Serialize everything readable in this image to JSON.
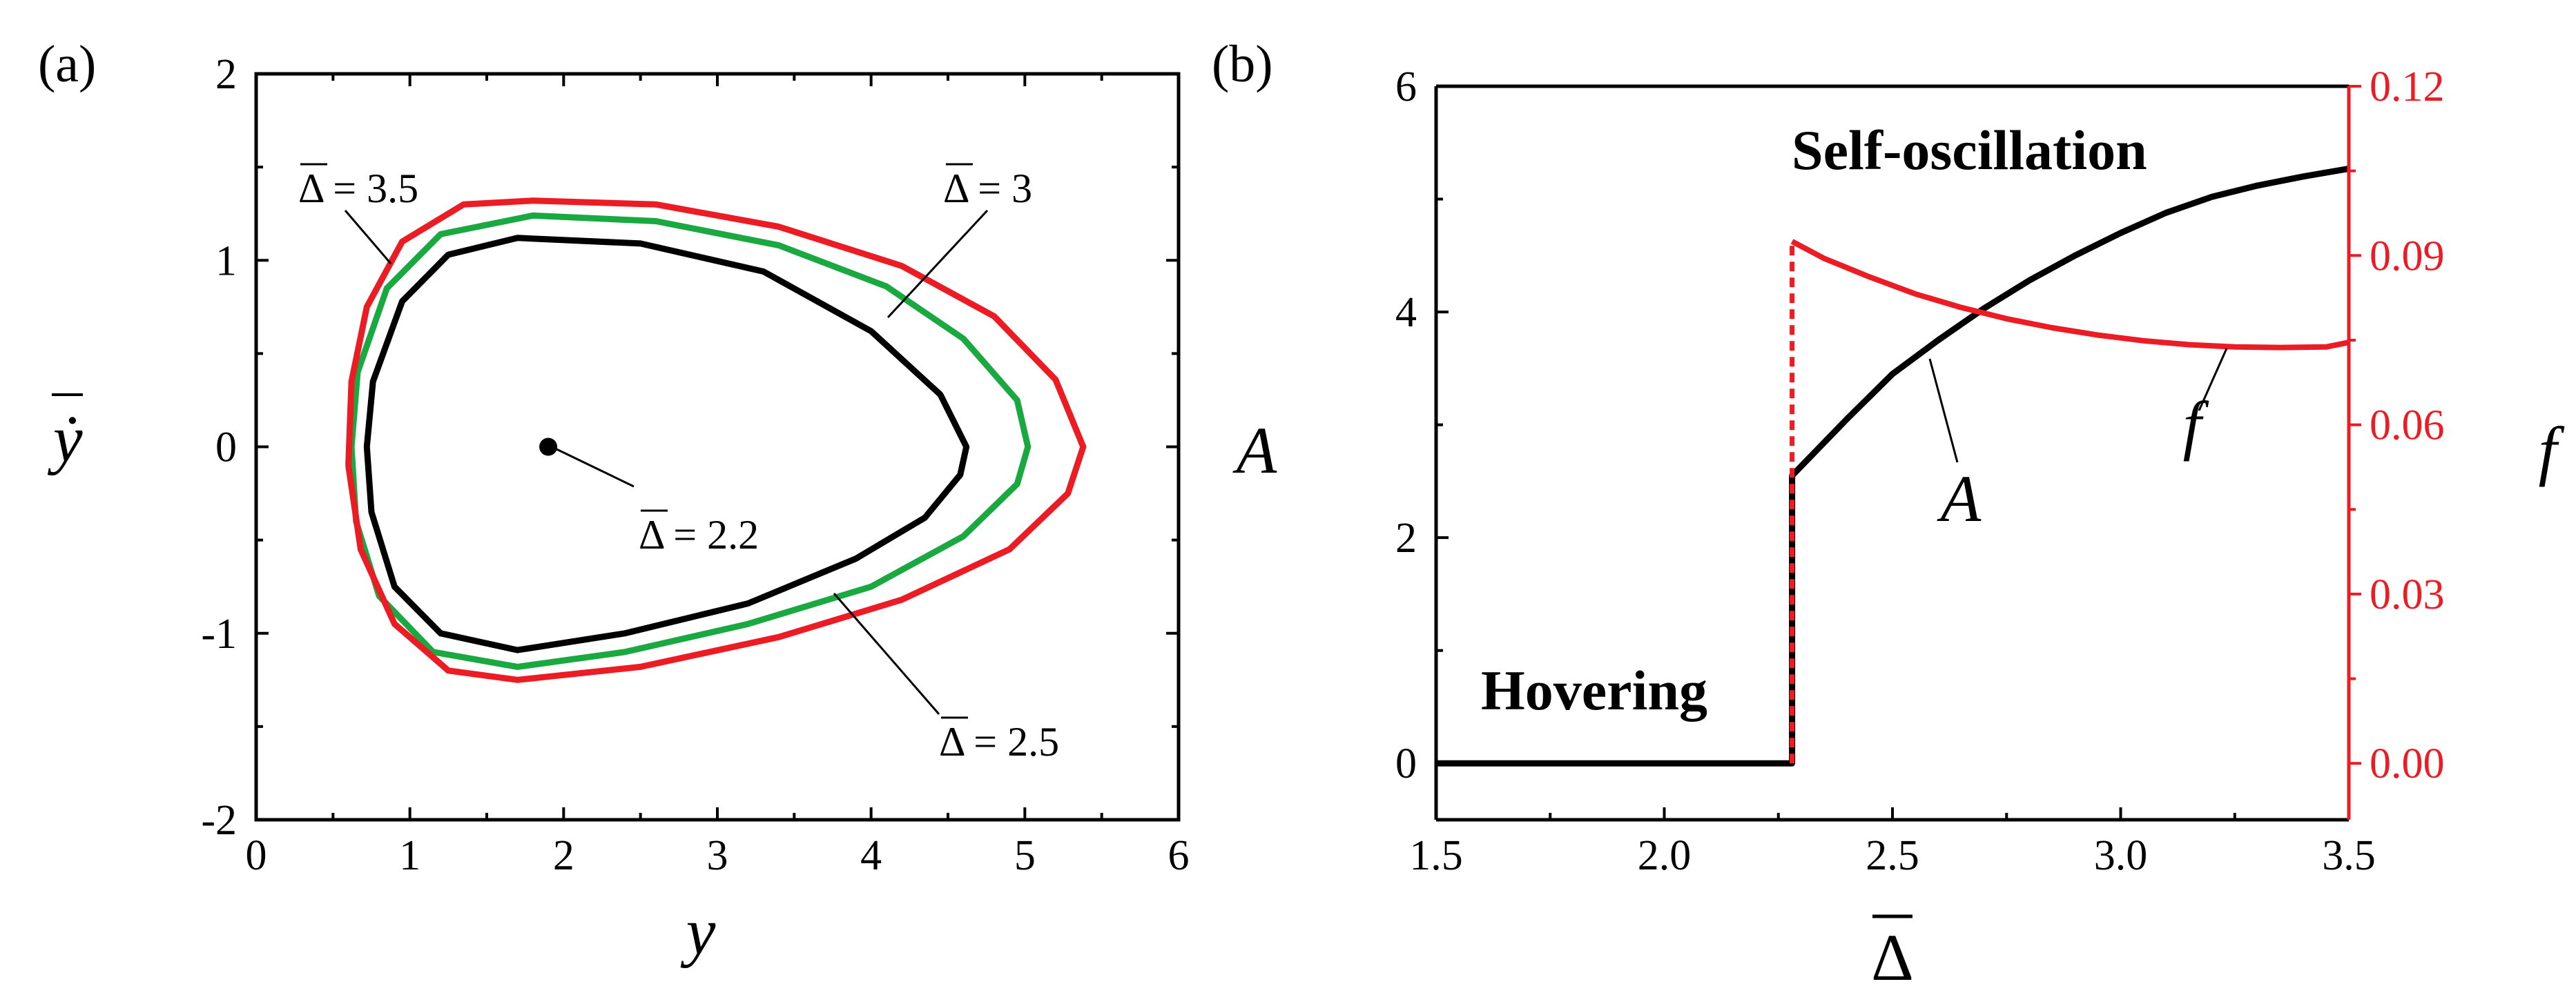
{
  "chart_data": [
    {
      "panel": "(a)",
      "type": "line",
      "xlabel": "y",
      "ylabel": "ẏ",
      "xlim": [
        0,
        6
      ],
      "ylim": [
        -2,
        2
      ],
      "xticks": [
        "0",
        "1",
        "2",
        "3",
        "4",
        "5",
        "6"
      ],
      "yticks": [
        "-2",
        "-1",
        "0",
        "1",
        "2"
      ],
      "colors": {
        "black": "#000000",
        "green": "#1aa841",
        "red": "#ec1c24"
      },
      "point": {
        "label": "Δ = 2.2",
        "x": 1.9,
        "y": 0.0
      },
      "series": [
        {
          "label": "Δ = 2.5",
          "color": "#000000",
          "x": [
            1.7,
            2.5,
            3.3,
            4.0,
            4.45,
            4.62,
            4.58,
            4.35,
            3.9,
            3.2,
            2.4,
            1.7,
            1.2,
            0.9,
            0.75,
            0.72,
            0.76,
            0.95,
            1.25,
            1.7
          ],
          "y": [
            1.12,
            1.09,
            0.94,
            0.62,
            0.28,
            0.0,
            -0.15,
            -0.38,
            -0.6,
            -0.84,
            -1.0,
            -1.09,
            -1.0,
            -0.75,
            -0.35,
            0.0,
            0.35,
            0.78,
            1.03,
            1.12
          ]
        },
        {
          "label": "Δ = 3",
          "color": "#1aa841",
          "x": [
            1.8,
            2.6,
            3.4,
            4.1,
            4.6,
            4.95,
            5.02,
            4.95,
            4.6,
            4.0,
            3.2,
            2.4,
            1.7,
            1.15,
            0.8,
            0.65,
            0.62,
            0.66,
            0.85,
            1.2,
            1.8
          ],
          "y": [
            1.24,
            1.21,
            1.08,
            0.86,
            0.58,
            0.25,
            0.0,
            -0.2,
            -0.48,
            -0.75,
            -0.95,
            -1.1,
            -1.18,
            -1.1,
            -0.8,
            -0.4,
            0.0,
            0.4,
            0.85,
            1.14,
            1.24
          ]
        },
        {
          "label": "Δ = 3.5",
          "color": "#ec1c24",
          "x": [
            1.8,
            2.6,
            3.4,
            4.2,
            4.8,
            5.2,
            5.38,
            5.28,
            4.9,
            4.2,
            3.4,
            2.5,
            1.7,
            1.25,
            0.9,
            0.68,
            0.6,
            0.62,
            0.72,
            0.95,
            1.35,
            1.8
          ],
          "y": [
            1.32,
            1.3,
            1.18,
            0.97,
            0.7,
            0.36,
            0.0,
            -0.25,
            -0.55,
            -0.82,
            -1.02,
            -1.18,
            -1.25,
            -1.2,
            -0.95,
            -0.55,
            -0.1,
            0.35,
            0.75,
            1.1,
            1.3,
            1.32
          ]
        }
      ]
    },
    {
      "panel": "(b)",
      "type": "line",
      "xlabel": "Δ",
      "ylabel": "A",
      "ylabel_right": "f",
      "xlim": [
        1.5,
        3.5
      ],
      "ylim": [
        -0.5,
        6
      ],
      "ylim_right": [
        -0.01,
        0.12
      ],
      "xticks": [
        "1.5",
        "2.0",
        "2.5",
        "3.0",
        "3.5"
      ],
      "yticks": [
        "0",
        "2",
        "4",
        "6"
      ],
      "yticks_right": [
        "0.00",
        "0.03",
        "0.06",
        "0.09",
        "0.12"
      ],
      "annotations": {
        "region_low": "Hovering",
        "region_high": "Self-oscillation",
        "curve_A": "A",
        "curve_f": "f"
      },
      "bifurcation_x": 2.28,
      "series": [
        {
          "name": "A",
          "color": "#000000",
          "x": [
            1.5,
            2.28,
            2.28,
            2.4,
            2.5,
            2.6,
            2.7,
            2.8,
            2.9,
            3.0,
            3.1,
            3.2,
            3.3,
            3.4,
            3.5
          ],
          "y": [
            0.0,
            0.0,
            2.55,
            3.05,
            3.45,
            3.75,
            4.03,
            4.28,
            4.5,
            4.7,
            4.88,
            5.02,
            5.12,
            5.2,
            5.27
          ]
        },
        {
          "name": "f",
          "color": "#ec1c24",
          "axis": "right",
          "x": [
            2.28,
            2.35,
            2.45,
            2.55,
            2.65,
            2.75,
            2.85,
            2.95,
            3.05,
            3.15,
            3.25,
            3.35,
            3.45,
            3.5
          ],
          "y": [
            0.0925,
            0.0895,
            0.0862,
            0.0832,
            0.0808,
            0.0788,
            0.0772,
            0.0759,
            0.0749,
            0.0742,
            0.0738,
            0.0737,
            0.0738,
            0.0746
          ]
        }
      ]
    }
  ]
}
